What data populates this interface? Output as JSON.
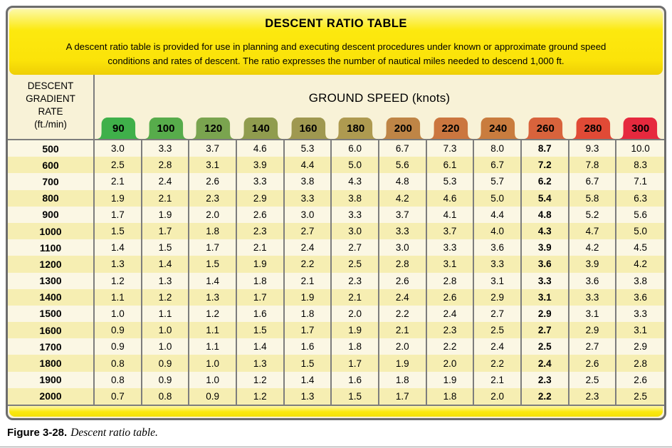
{
  "header": {
    "title": "DESCENT RATIO TABLE",
    "description_lines": [
      "A descent ratio table is provided for use in planning and executing descent procedures under known or approximate ground speed",
      "conditions and rates of descent. The ratio expresses the number of nautical miles needed to descend 1,000 ft."
    ]
  },
  "table": {
    "corner_label_lines": [
      "DESCENT",
      "GRADIENT",
      "RATE",
      "(ft./min)"
    ],
    "ground_speed_title": "GROUND SPEED (knots)",
    "bold_column_label": "260",
    "columns": [
      {
        "label": "90",
        "color": "#3fb04a"
      },
      {
        "label": "100",
        "color": "#57ac4b"
      },
      {
        "label": "120",
        "color": "#7aa44f"
      },
      {
        "label": "140",
        "color": "#909c4e"
      },
      {
        "label": "160",
        "color": "#9f9850"
      },
      {
        "label": "180",
        "color": "#ae9a50"
      },
      {
        "label": "200",
        "color": "#bf8546"
      },
      {
        "label": "220",
        "color": "#cb763f"
      },
      {
        "label": "240",
        "color": "#c97c3e"
      },
      {
        "label": "260",
        "color": "#d8633c"
      },
      {
        "label": "280",
        "color": "#e14a36"
      },
      {
        "label": "300",
        "color": "#e6293e"
      }
    ],
    "rows": [
      {
        "rate": "500",
        "values": [
          "3.0",
          "3.3",
          "3.7",
          "4.6",
          "5.3",
          "6.0",
          "6.7",
          "7.3",
          "8.0",
          "8.7",
          "9.3",
          "10.0"
        ]
      },
      {
        "rate": "600",
        "values": [
          "2.5",
          "2.8",
          "3.1",
          "3.9",
          "4.4",
          "5.0",
          "5.6",
          "6.1",
          "6.7",
          "7.2",
          "7.8",
          "8.3"
        ]
      },
      {
        "rate": "700",
        "values": [
          "2.1",
          "2.4",
          "2.6",
          "3.3",
          "3.8",
          "4.3",
          "4.8",
          "5.3",
          "5.7",
          "6.2",
          "6.7",
          "7.1"
        ]
      },
      {
        "rate": "800",
        "values": [
          "1.9",
          "2.1",
          "2.3",
          "2.9",
          "3.3",
          "3.8",
          "4.2",
          "4.6",
          "5.0",
          "5.4",
          "5.8",
          "6.3"
        ]
      },
      {
        "rate": "900",
        "values": [
          "1.7",
          "1.9",
          "2.0",
          "2.6",
          "3.0",
          "3.3",
          "3.7",
          "4.1",
          "4.4",
          "4.8",
          "5.2",
          "5.6"
        ]
      },
      {
        "rate": "1000",
        "values": [
          "1.5",
          "1.7",
          "1.8",
          "2.3",
          "2.7",
          "3.0",
          "3.3",
          "3.7",
          "4.0",
          "4.3",
          "4.7",
          "5.0"
        ]
      },
      {
        "rate": "1100",
        "values": [
          "1.4",
          "1.5",
          "1.7",
          "2.1",
          "2.4",
          "2.7",
          "3.0",
          "3.3",
          "3.6",
          "3.9",
          "4.2",
          "4.5"
        ]
      },
      {
        "rate": "1200",
        "values": [
          "1.3",
          "1.4",
          "1.5",
          "1.9",
          "2.2",
          "2.5",
          "2.8",
          "3.1",
          "3.3",
          "3.6",
          "3.9",
          "4.2"
        ]
      },
      {
        "rate": "1300",
        "values": [
          "1.2",
          "1.3",
          "1.4",
          "1.8",
          "2.1",
          "2.3",
          "2.6",
          "2.8",
          "3.1",
          "3.3",
          "3.6",
          "3.8"
        ]
      },
      {
        "rate": "1400",
        "values": [
          "1.1",
          "1.2",
          "1.3",
          "1.7",
          "1.9",
          "2.1",
          "2.4",
          "2.6",
          "2.9",
          "3.1",
          "3.3",
          "3.6"
        ]
      },
      {
        "rate": "1500",
        "values": [
          "1.0",
          "1.1",
          "1.2",
          "1.6",
          "1.8",
          "2.0",
          "2.2",
          "2.4",
          "2.7",
          "2.9",
          "3.1",
          "3.3"
        ]
      },
      {
        "rate": "1600",
        "values": [
          "0.9",
          "1.0",
          "1.1",
          "1.5",
          "1.7",
          "1.9",
          "2.1",
          "2.3",
          "2.5",
          "2.7",
          "2.9",
          "3.1"
        ]
      },
      {
        "rate": "1700",
        "values": [
          "0.9",
          "1.0",
          "1.1",
          "1.4",
          "1.6",
          "1.8",
          "2.0",
          "2.2",
          "2.4",
          "2.5",
          "2.7",
          "2.9"
        ]
      },
      {
        "rate": "1800",
        "values": [
          "0.8",
          "0.9",
          "1.0",
          "1.3",
          "1.5",
          "1.7",
          "1.9",
          "2.0",
          "2.2",
          "2.4",
          "2.6",
          "2.8"
        ]
      },
      {
        "rate": "1900",
        "values": [
          "0.8",
          "0.9",
          "1.0",
          "1.2",
          "1.4",
          "1.6",
          "1.8",
          "1.9",
          "2.1",
          "2.3",
          "2.5",
          "2.6"
        ]
      },
      {
        "rate": "2000",
        "values": [
          "0.7",
          "0.8",
          "0.9",
          "1.2",
          "1.3",
          "1.5",
          "1.7",
          "1.8",
          "2.0",
          "2.2",
          "2.3",
          "2.5"
        ]
      }
    ]
  },
  "caption": {
    "figure_label": "Figure 3-28.",
    "figure_title": "Descent ratio table."
  },
  "colors": {
    "container_border": "#6d6d6d",
    "grid_line": "#7d7d7d",
    "row_cream": "#fbf7e4",
    "row_yellow": "#f6eeb2",
    "banner_yellow": "#fbe309",
    "table_background": "#f8f2d7"
  }
}
